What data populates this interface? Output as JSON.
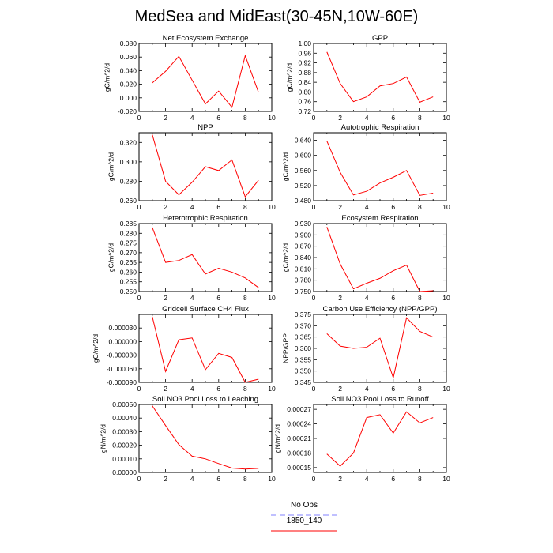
{
  "page": {
    "title": "MedSea and MidEast(30-45N,10W-60E)"
  },
  "legend": {
    "entries": [
      {
        "name": "No Obs",
        "color": "#8080ff",
        "dashed": true
      },
      {
        "name": "1850_140",
        "color": "#ff0000",
        "dashed": false
      }
    ]
  },
  "chart_data": [
    {
      "type": "line",
      "title": "Net Ecosystem Exchange",
      "xlabel": "",
      "ylabel": "gC/m^2/d",
      "xlim": [
        0,
        10
      ],
      "ylim": [
        -0.02,
        0.08
      ],
      "xticks": [
        "0",
        "2",
        "4",
        "6",
        "8",
        "10"
      ],
      "yticks": [
        "-0.020",
        "0.000",
        "0.020",
        "0.040",
        "0.060",
        "0.080"
      ],
      "series": [
        {
          "color": "#ff0000",
          "x": [
            1,
            2,
            3,
            4,
            5,
            6,
            7,
            8,
            9
          ],
          "values": [
            0.022,
            0.039,
            0.061,
            0.026,
            -0.009,
            0.01,
            -0.014,
            0.062,
            0.008
          ]
        }
      ]
    },
    {
      "type": "line",
      "title": "GPP",
      "xlabel": "",
      "ylabel": "gC/m^2/d",
      "xlim": [
        0,
        10
      ],
      "ylim": [
        0.72,
        1.0
      ],
      "xticks": [
        "0",
        "2",
        "4",
        "6",
        "8",
        "10"
      ],
      "yticks": [
        "0.72",
        "0.76",
        "0.80",
        "0.84",
        "0.88",
        "0.92",
        "0.96",
        "1.00"
      ],
      "series": [
        {
          "color": "#ff0000",
          "x": [
            1,
            2,
            3,
            4,
            5,
            6,
            7,
            8,
            9
          ],
          "values": [
            0.965,
            0.835,
            0.76,
            0.78,
            0.825,
            0.835,
            0.862,
            0.758,
            0.78
          ]
        }
      ]
    },
    {
      "type": "line",
      "title": "NPP",
      "xlabel": "",
      "ylabel": "gC/m^2/d",
      "xlim": [
        0,
        10
      ],
      "ylim": [
        0.26,
        0.33
      ],
      "xticks": [
        "0",
        "2",
        "4",
        "6",
        "8",
        "10"
      ],
      "yticks": [
        "0.260",
        "0.280",
        "0.300",
        "0.320"
      ],
      "series": [
        {
          "color": "#ff0000",
          "x": [
            1,
            2,
            3,
            4,
            5,
            6,
            7,
            8,
            9
          ],
          "values": [
            0.328,
            0.28,
            0.266,
            0.279,
            0.295,
            0.291,
            0.302,
            0.264,
            0.281
          ]
        }
      ]
    },
    {
      "type": "line",
      "title": "Autotrophic Respiration",
      "xlabel": "",
      "ylabel": "gC/m^2/d",
      "xlim": [
        0,
        10
      ],
      "ylim": [
        0.48,
        0.66
      ],
      "xticks": [
        "0",
        "2",
        "4",
        "6",
        "8",
        "10"
      ],
      "yticks": [
        "0.480",
        "0.520",
        "0.560",
        "0.600",
        "0.640"
      ],
      "series": [
        {
          "color": "#ff0000",
          "x": [
            1,
            2,
            3,
            4,
            5,
            6,
            7,
            8,
            9
          ],
          "values": [
            0.638,
            0.555,
            0.495,
            0.505,
            0.527,
            0.542,
            0.56,
            0.494,
            0.5
          ]
        }
      ]
    },
    {
      "type": "line",
      "title": "Heterotrophic Respiration",
      "xlabel": "",
      "ylabel": "gC/m^2/d",
      "xlim": [
        0,
        10
      ],
      "ylim": [
        0.25,
        0.285
      ],
      "xticks": [
        "0",
        "2",
        "4",
        "6",
        "8",
        "10"
      ],
      "yticks": [
        "0.250",
        "0.255",
        "0.260",
        "0.265",
        "0.270",
        "0.275",
        "0.280",
        "0.285"
      ],
      "series": [
        {
          "color": "#ff0000",
          "x": [
            1,
            2,
            3,
            4,
            5,
            6,
            7,
            8,
            9
          ],
          "values": [
            0.283,
            0.265,
            0.266,
            0.269,
            0.259,
            0.262,
            0.26,
            0.257,
            0.252
          ]
        }
      ]
    },
    {
      "type": "line",
      "title": "Ecosystem Respiration",
      "xlabel": "",
      "ylabel": "gC/m^2/d",
      "xlim": [
        0,
        10
      ],
      "ylim": [
        0.75,
        0.93
      ],
      "xticks": [
        "0",
        "2",
        "4",
        "6",
        "8",
        "10"
      ],
      "yticks": [
        "0.750",
        "0.780",
        "0.810",
        "0.840",
        "0.870",
        "0.900",
        "0.930"
      ],
      "series": [
        {
          "color": "#ff0000",
          "x": [
            1,
            2,
            3,
            4,
            5,
            6,
            7,
            8,
            9
          ],
          "values": [
            0.921,
            0.823,
            0.757,
            0.772,
            0.785,
            0.805,
            0.82,
            0.75,
            0.752
          ]
        }
      ]
    },
    {
      "type": "line",
      "title": "Gridcell Surface CH4 Flux",
      "xlabel": "",
      "ylabel": "gC/m^2/d",
      "xlim": [
        0,
        10
      ],
      "ylim": [
        -9e-05,
        6e-05
      ],
      "xticks": [
        "0",
        "2",
        "4",
        "6",
        "8",
        "10"
      ],
      "yticks": [
        "-0.000090",
        "-0.000060",
        "-0.000030",
        "0.000000",
        "0.000030"
      ],
      "series": [
        {
          "color": "#ff0000",
          "x": [
            1,
            2,
            3,
            4,
            5,
            6,
            7,
            8,
            9
          ],
          "values": [
            5.5e-05,
            -6.6e-05,
            4e-06,
            8e-06,
            -6.2e-05,
            -2.6e-05,
            -3.5e-05,
            -9e-05,
            -8.3e-05
          ]
        }
      ]
    },
    {
      "type": "line",
      "title": "Carbon Use Efficiency (NPP/GPP)",
      "xlabel": "",
      "ylabel": "NPP/GPP",
      "xlim": [
        0,
        10
      ],
      "ylim": [
        0.345,
        0.375
      ],
      "xticks": [
        "0",
        "2",
        "4",
        "6",
        "8",
        "10"
      ],
      "yticks": [
        "0.345",
        "0.350",
        "0.355",
        "0.360",
        "0.365",
        "0.370",
        "0.375"
      ],
      "series": [
        {
          "color": "#ff0000",
          "x": [
            1,
            2,
            3,
            4,
            5,
            6,
            7,
            8,
            9
          ],
          "values": [
            0.3665,
            0.361,
            0.36,
            0.3605,
            0.3645,
            0.347,
            0.3735,
            0.3675,
            0.365
          ]
        }
      ]
    },
    {
      "type": "line",
      "title": "Soil NO3 Pool Loss to Leaching",
      "xlabel": "",
      "ylabel": "gN/m^2/d",
      "xlim": [
        0,
        10
      ],
      "ylim": [
        0,
        0.0005
      ],
      "xticks": [
        "0",
        "2",
        "4",
        "6",
        "8",
        "10"
      ],
      "yticks": [
        "0.00000",
        "0.00010",
        "0.00020",
        "0.00030",
        "0.00040",
        "0.00050"
      ],
      "series": [
        {
          "color": "#ff0000",
          "x": [
            1,
            2,
            3,
            4,
            5,
            6,
            7,
            8,
            9
          ],
          "values": [
            0.00049,
            0.000345,
            0.000205,
            0.00012,
            0.0001,
            6.5e-05,
            3.2e-05,
            2.5e-05,
            3e-05
          ]
        }
      ]
    },
    {
      "type": "line",
      "title": "Soil NO3 Pool Loss to Runoff",
      "xlabel": "",
      "ylabel": "gN/m^2/d",
      "xlim": [
        0,
        10
      ],
      "ylim": [
        0.00014,
        0.00028
      ],
      "xticks": [
        "0",
        "2",
        "4",
        "6",
        "8",
        "10"
      ],
      "yticks": [
        "0.00015",
        "0.00018",
        "0.00021",
        "0.00024",
        "0.00027"
      ],
      "series": [
        {
          "color": "#ff0000",
          "x": [
            1,
            2,
            3,
            4,
            5,
            6,
            7,
            8,
            9
          ],
          "values": [
            0.000178,
            0.000153,
            0.00018,
            0.000253,
            0.000259,
            0.000221,
            0.000265,
            0.000242,
            0.000253
          ]
        }
      ]
    }
  ]
}
